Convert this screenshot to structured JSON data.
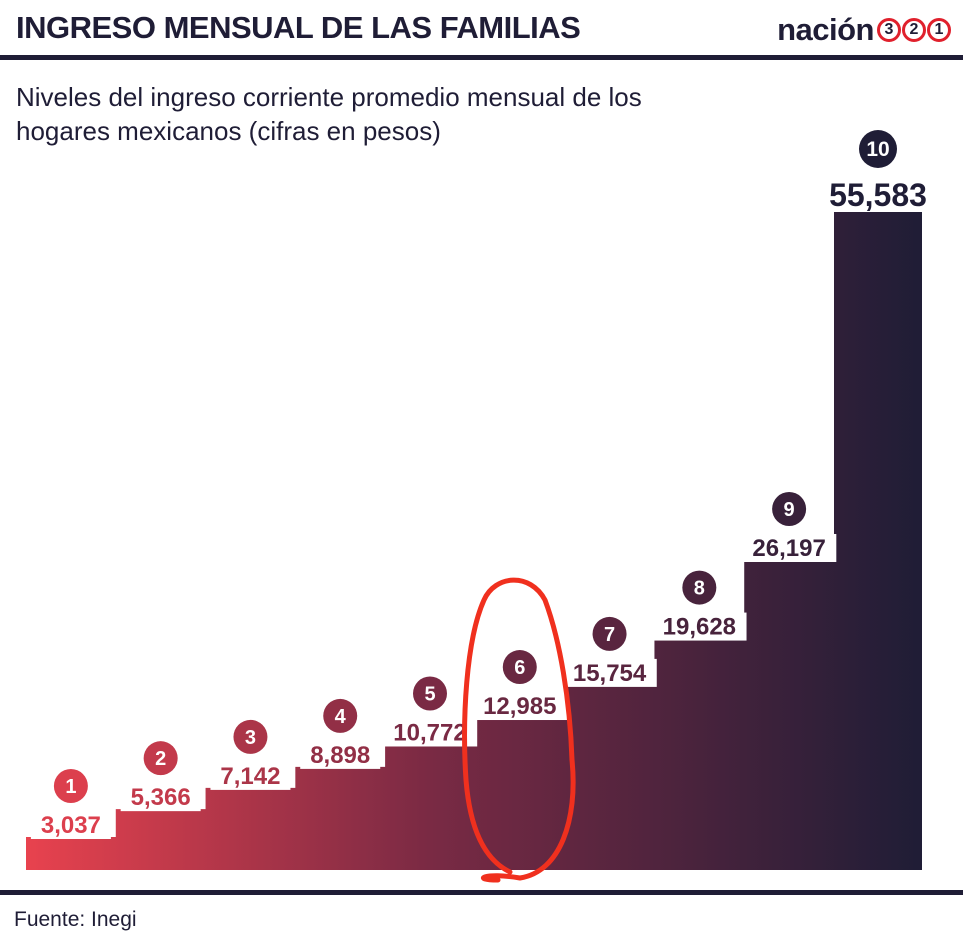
{
  "header": {
    "title": "INGRESO MENSUAL DE LAS FAMILIAS",
    "logo_word": "nación",
    "logo_digits": [
      "3",
      "2",
      "1"
    ]
  },
  "subtitle": "Niveles del ingreso corriente promedio mensual de los hogares mexicanos (cifras en pesos)",
  "source": "Fuente: Inegi",
  "colors": {
    "dark": "#1f1d36",
    "red": "#e8424e",
    "highlight_stroke": "#f0301e"
  },
  "chart_data": {
    "type": "bar",
    "categories": [
      "1",
      "2",
      "3",
      "4",
      "5",
      "6",
      "7",
      "8",
      "9",
      "10"
    ],
    "values": [
      3037,
      5366,
      7142,
      8898,
      10772,
      12985,
      15754,
      19628,
      26197,
      55583
    ],
    "value_labels": [
      "3,037",
      "5,366",
      "7,142",
      "8,898",
      "10,772",
      "12,985",
      "15,754",
      "19,628",
      "26,197",
      "55,583"
    ],
    "title": "INGRESO MENSUAL DE LAS FAMILIAS",
    "subtitle": "Niveles del ingreso corriente promedio mensual de los hogares mexicanos (cifras en pesos)",
    "xlabel": "",
    "ylabel": "",
    "ylim": [
      0,
      60000
    ],
    "grid": false,
    "legend": "none",
    "annotation": "red hand-drawn circle around decile 6"
  }
}
